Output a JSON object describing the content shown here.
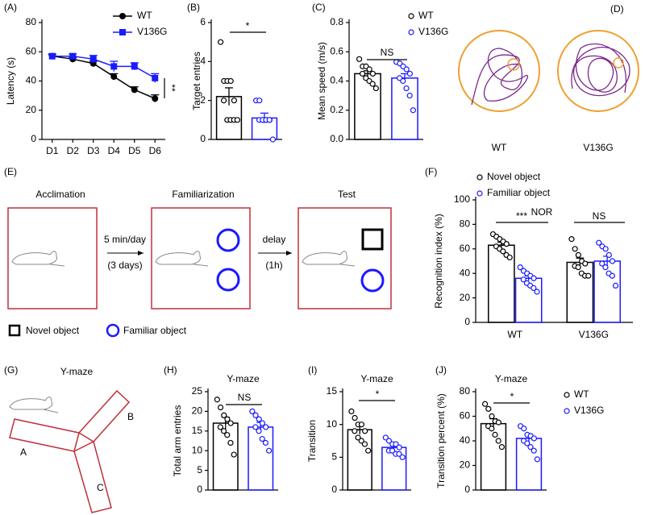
{
  "chart_data": [
    {
      "type": "line",
      "panel_label": "(A)",
      "y_label": "Latency (s)",
      "categories": [
        "D1",
        "D2",
        "D3",
        "D4",
        "D5",
        "D6"
      ],
      "series": [
        {
          "name": "WT",
          "color": "#000000",
          "marker": "circle",
          "values": [
            57,
            55,
            52,
            43,
            34,
            28
          ],
          "errors": [
            1,
            1,
            1.5,
            2,
            2,
            2.5
          ]
        },
        {
          "name": "V136G",
          "color": "#1a1aff",
          "marker": "square",
          "values": [
            57,
            57,
            55,
            50,
            50,
            42
          ],
          "errors": [
            1.5,
            1.5,
            2.5,
            3.5,
            2.5,
            3
          ]
        }
      ],
      "ylim": [
        0,
        80
      ],
      "yticks": [
        0,
        20,
        40,
        60,
        80
      ],
      "annotations": [
        "**"
      ],
      "legend": true
    },
    {
      "type": "bar",
      "panel_label": "(B)",
      "y_label": "Target entries",
      "series": [
        {
          "color": "#000000",
          "values": [
            2.2
          ],
          "errors": [
            0.45
          ],
          "points": [
            5,
            3,
            3,
            3,
            2,
            2,
            1,
            1,
            1,
            1
          ]
        },
        {
          "color": "#1a1aff",
          "values": [
            1.1
          ],
          "errors": [
            0.25
          ],
          "points": [
            2,
            2,
            1,
            1,
            1,
            1,
            1,
            1,
            1,
            0
          ]
        }
      ],
      "ylim": [
        0,
        6
      ],
      "yticks": [
        0,
        2,
        4,
        6
      ],
      "annotations": [
        "*"
      ],
      "legend": false
    },
    {
      "type": "bar",
      "panel_label": "(C)",
      "y_label": "Mean speed (m/s)",
      "series": [
        {
          "name": "WT",
          "color": "#000000",
          "values": [
            0.45
          ],
          "errors": [
            0.02
          ],
          "points": [
            0.55,
            0.5,
            0.5,
            0.48,
            0.45,
            0.45,
            0.42,
            0.4,
            0.38,
            0.35
          ]
        },
        {
          "name": "V136G",
          "color": "#1a1aff",
          "values": [
            0.42
          ],
          "errors": [
            0.03
          ],
          "points": [
            0.53,
            0.52,
            0.5,
            0.48,
            0.45,
            0.42,
            0.4,
            0.35,
            0.3,
            0.2
          ]
        }
      ],
      "ylim": [
        0,
        0.8
      ],
      "yticks": [
        {
          "value": 0,
          "label": "0.0"
        },
        0.2,
        0.4,
        0.6,
        0.8
      ],
      "annotations": [
        "NS"
      ],
      "legend": true
    },
    {
      "type": "bar",
      "panel_label": "(F)",
      "y_label": "Recognition index (%)",
      "categories": [
        "WT",
        "V136G"
      ],
      "series": [
        {
          "name": "Novel object",
          "color": "#000000",
          "values": [
            63,
            49
          ],
          "errors": [
            2.5,
            3.5
          ],
          "points": [
            [
              72,
              70,
              68,
              66,
              64,
              62,
              60,
              58,
              55,
              53
            ],
            [
              68,
              60,
              55,
              50,
              48,
              46,
              45,
              40,
              38,
              38
            ]
          ]
        },
        {
          "name": "Familiar object",
          "color": "#1a1aff",
          "values": [
            36,
            50
          ],
          "errors": [
            2,
            4
          ],
          "points": [
            [
              45,
              42,
              40,
              38,
              36,
              35,
              32,
              30,
              28,
              25
            ],
            [
              65,
              62,
              60,
              55,
              50,
              48,
              45,
              40,
              38,
              30
            ]
          ]
        }
      ],
      "ylim": [
        0,
        100
      ],
      "yticks": [
        0,
        20,
        40,
        60,
        80,
        100
      ],
      "annotations": [
        "***",
        "NS",
        "NOR"
      ],
      "legend": true
    },
    {
      "type": "bar",
      "panel_label": "(H)",
      "title": "Y-maze",
      "y_label": "Total arm entries",
      "series": [
        {
          "color": "#000000",
          "values": [
            17
          ],
          "errors": [
            1.5
          ],
          "points": [
            23,
            21,
            19,
            18,
            17,
            16,
            15,
            14,
            12,
            9
          ]
        },
        {
          "color": "#1a1aff",
          "values": [
            16
          ],
          "errors": [
            1.2
          ],
          "points": [
            20,
            19,
            18,
            17,
            16,
            16,
            15,
            13,
            12,
            10
          ]
        }
      ],
      "ylim": [
        0,
        25
      ],
      "yticks": [
        0,
        5,
        10,
        15,
        20,
        25
      ],
      "annotations": [
        "NS"
      ],
      "legend": false
    },
    {
      "type": "bar",
      "panel_label": "(I)",
      "title": "Y-maze",
      "y_label": "Transition",
      "series": [
        {
          "color": "#000000",
          "values": [
            9.2
          ],
          "errors": [
            0.7
          ],
          "points": [
            12,
            11,
            10,
            10,
            9,
            9,
            8,
            7.5,
            7,
            6
          ]
        },
        {
          "color": "#1a1aff",
          "values": [
            6.5
          ],
          "errors": [
            0.4
          ],
          "points": [
            8,
            7.5,
            7,
            7,
            6.5,
            6,
            6,
            5.5,
            5.5,
            5
          ]
        }
      ],
      "ylim": [
        0,
        15
      ],
      "yticks": [
        0,
        5,
        10,
        15
      ],
      "annotations": [
        "*"
      ],
      "legend": false
    },
    {
      "type": "bar",
      "panel_label": "(J)",
      "title": "Y-maze",
      "y_label": "Transition percent (%)",
      "series": [
        {
          "name": "WT",
          "color": "#000000",
          "values": [
            54
          ],
          "errors": [
            4
          ],
          "points": [
            70,
            66,
            60,
            56,
            55,
            52,
            50,
            45,
            40,
            35
          ]
        },
        {
          "name": "V136G",
          "color": "#1a1aff",
          "values": [
            42
          ],
          "errors": [
            3
          ],
          "points": [
            52,
            50,
            45,
            44,
            42,
            40,
            38,
            35,
            32,
            25
          ]
        }
      ],
      "ylim": [
        0,
        80
      ],
      "yticks": [
        0,
        20,
        40,
        60,
        80
      ],
      "annotations": [
        "*"
      ],
      "legend": true
    }
  ],
  "track_panel": {
    "panel_label": "(D)",
    "labels": [
      "WT",
      "V136G"
    ]
  },
  "nor_diagram": {
    "panel_label": "(E)",
    "stages": [
      "Acclimation",
      "Familiarization",
      "Test"
    ],
    "transitions": [
      [
        "5 min/day",
        "(3 days)"
      ],
      [
        "delay",
        "(1h)"
      ]
    ],
    "legend": [
      "Novel object",
      "Familiar object"
    ]
  },
  "ymaze_diagram": {
    "panel_label": "(G)",
    "title": "Y-maze",
    "arms": [
      "A",
      "B",
      "C"
    ]
  }
}
